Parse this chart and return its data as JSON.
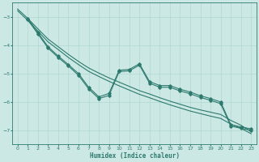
{
  "xlabel": "Humidex (Indice chaleur)",
  "bg_color": "#cce8e4",
  "grid_color": "#b0d8d0",
  "line_color": "#2d7a6e",
  "xlim": [
    -0.5,
    23.5
  ],
  "ylim": [
    -7.5,
    -2.5
  ],
  "yticks": [
    -7,
    -6,
    -5,
    -4,
    -3
  ],
  "xticks": [
    0,
    1,
    2,
    3,
    4,
    5,
    6,
    7,
    8,
    9,
    10,
    11,
    12,
    13,
    14,
    15,
    16,
    17,
    18,
    19,
    20,
    21,
    22,
    23
  ],
  "line1_x": [
    0,
    1,
    2,
    3,
    4,
    5,
    6,
    7,
    8,
    9,
    10,
    11,
    12,
    13,
    14,
    15,
    16,
    17,
    18,
    19,
    20,
    21,
    22,
    23
  ],
  "line1_y": [
    -2.72,
    -3.05,
    -3.42,
    -3.78,
    -4.05,
    -4.32,
    -4.57,
    -4.8,
    -4.98,
    -5.15,
    -5.3,
    -5.45,
    -5.6,
    -5.72,
    -5.85,
    -5.97,
    -6.08,
    -6.19,
    -6.28,
    -6.36,
    -6.44,
    -6.65,
    -6.82,
    -7.05
  ],
  "line2_x": [
    0,
    1,
    2,
    3,
    4,
    5,
    6,
    7,
    8,
    9,
    10,
    11,
    12,
    13,
    14,
    15,
    16,
    17,
    18,
    19,
    20,
    21,
    22,
    23
  ],
  "line2_y": [
    -2.78,
    -3.12,
    -3.5,
    -3.88,
    -4.15,
    -4.43,
    -4.68,
    -4.92,
    -5.1,
    -5.27,
    -5.43,
    -5.58,
    -5.73,
    -5.85,
    -5.98,
    -6.1,
    -6.21,
    -6.32,
    -6.41,
    -6.5,
    -6.58,
    -6.78,
    -6.93,
    -7.12
  ],
  "line3_x": [
    1,
    2,
    3,
    4,
    5,
    6,
    7,
    8,
    9,
    10,
    11,
    12,
    13,
    14,
    15,
    16,
    17,
    18,
    19,
    20,
    21,
    22,
    23
  ],
  "line3_y": [
    -3.05,
    -3.55,
    -4.05,
    -4.38,
    -4.68,
    -5.0,
    -5.48,
    -5.82,
    -5.7,
    -4.88,
    -4.85,
    -4.65,
    -5.28,
    -5.42,
    -5.42,
    -5.55,
    -5.65,
    -5.78,
    -5.88,
    -6.0,
    -6.8,
    -6.88,
    -6.95
  ],
  "line4_x": [
    1,
    2,
    3,
    4,
    5,
    6,
    7,
    8,
    9,
    10,
    11,
    12,
    13,
    14,
    15,
    16,
    17,
    18,
    19,
    20,
    21,
    22,
    23
  ],
  "line4_y": [
    -3.1,
    -3.6,
    -4.1,
    -4.43,
    -4.73,
    -5.06,
    -5.54,
    -5.88,
    -5.77,
    -4.93,
    -4.9,
    -4.7,
    -5.34,
    -5.48,
    -5.48,
    -5.61,
    -5.71,
    -5.84,
    -5.94,
    -6.06,
    -6.85,
    -6.93,
    -7.0
  ]
}
